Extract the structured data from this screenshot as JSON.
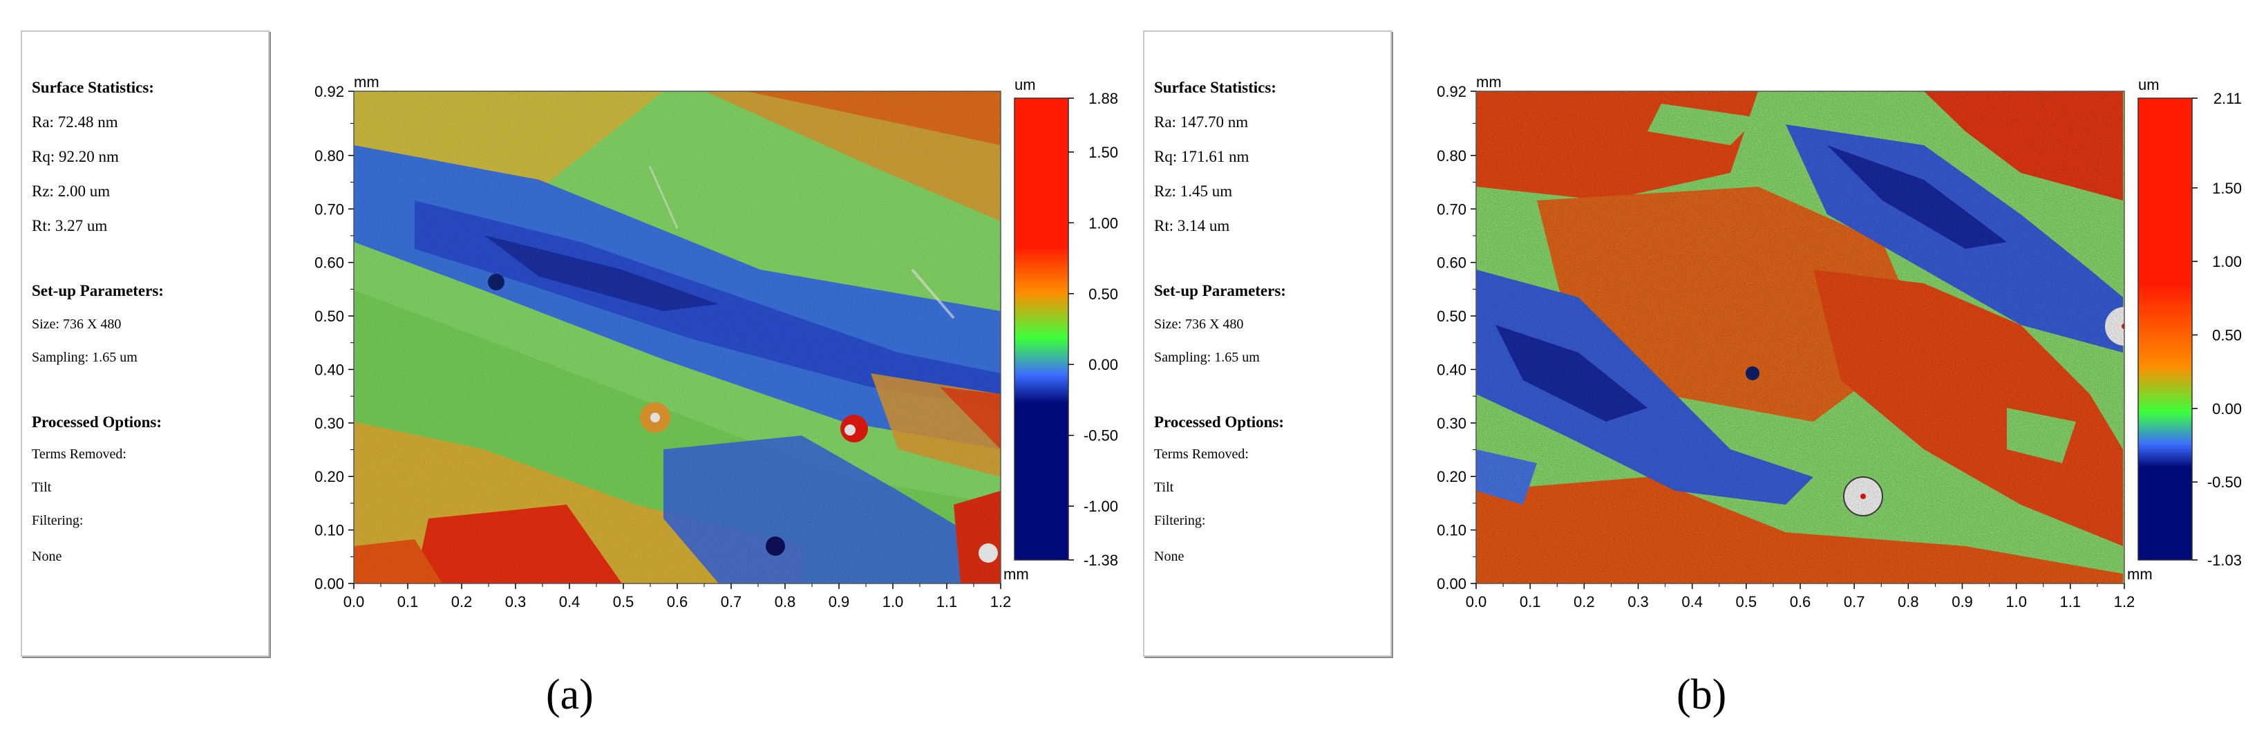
{
  "panels": [
    {
      "label": "(a)",
      "stats": {
        "surface_heading": "Surface Statistics:",
        "ra": "Ra:  72.48 nm",
        "rq": "Rq:  92.20 nm",
        "rz": "Rz:  2.00 um",
        "rt": "Rt:  3.27 um",
        "setup_heading": "Set-up Parameters:",
        "size": "Size: 736 X 480",
        "sampling": "Sampling:  1.65 um",
        "processed_heading": "Processed Options:",
        "terms_removed": "Terms Removed:",
        "tilt": "Tilt",
        "filtering": "Filtering:",
        "none": "None"
      }
    },
    {
      "label": "(b)",
      "stats": {
        "surface_heading": "Surface Statistics:",
        "ra": "Ra:  147.70 nm",
        "rq": "Rq:  171.61 nm",
        "rz": "Rz:  1.45 um",
        "rt": "Rt:  3.14 um",
        "setup_heading": "Set-up Parameters:",
        "size": "Size: 736 X 480",
        "sampling": "Sampling:  1.65 um",
        "processed_heading": "Processed Options:",
        "terms_removed": "Terms Removed:",
        "tilt": "Tilt",
        "filtering": "Filtering:",
        "none": "None"
      }
    }
  ],
  "chart_data": [
    {
      "type": "heatmap",
      "title": "",
      "xlabel": "mm",
      "ylabel": "mm",
      "x_unit_label": "mm",
      "y_unit_label": "mm",
      "colorbar_unit": "um",
      "x_ticks": [
        "0.0",
        "0.1",
        "0.2",
        "0.3",
        "0.4",
        "0.5",
        "0.6",
        "0.7",
        "0.8",
        "0.9",
        "1.0",
        "1.1",
        "1.2"
      ],
      "y_ticks": [
        "0.00",
        "0.10",
        "0.20",
        "0.30",
        "0.40",
        "0.50",
        "0.60",
        "0.70",
        "0.80",
        "0.92"
      ],
      "xlim": [
        0,
        1.2
      ],
      "ylim": [
        0,
        0.92
      ],
      "colorbar_ticks": [
        "1.88",
        "1.50",
        "1.00",
        "0.50",
        "0.00",
        "-0.50",
        "-1.00",
        "-1.38"
      ],
      "colorbar_range": [
        -1.38,
        1.88
      ],
      "colors": {
        "high": "#ff1a00",
        "mid_high": "#ff8c00",
        "mid": "#3cff3c",
        "mid_low": "#3c6cff",
        "low": "#000a78"
      }
    },
    {
      "type": "heatmap",
      "title": "",
      "xlabel": "mm",
      "ylabel": "mm",
      "x_unit_label": "mm",
      "y_unit_label": "mm",
      "colorbar_unit": "um",
      "x_ticks": [
        "0.0",
        "0.1",
        "0.2",
        "0.3",
        "0.4",
        "0.5",
        "0.6",
        "0.7",
        "0.8",
        "0.9",
        "1.0",
        "1.1",
        "1.2"
      ],
      "y_ticks": [
        "0.00",
        "0.10",
        "0.20",
        "0.30",
        "0.40",
        "0.50",
        "0.60",
        "0.70",
        "0.80",
        "0.92"
      ],
      "xlim": [
        0,
        1.2
      ],
      "ylim": [
        0,
        0.92
      ],
      "colorbar_ticks": [
        "2.11",
        "1.50",
        "1.00",
        "0.50",
        "0.00",
        "-0.50",
        "-1.03"
      ],
      "colorbar_range": [
        -1.03,
        2.11
      ],
      "colors": {
        "high": "#ff1a00",
        "mid_high": "#ff8c00",
        "mid": "#3cff3c",
        "mid_low": "#3c6cff",
        "low": "#000a78"
      }
    }
  ]
}
